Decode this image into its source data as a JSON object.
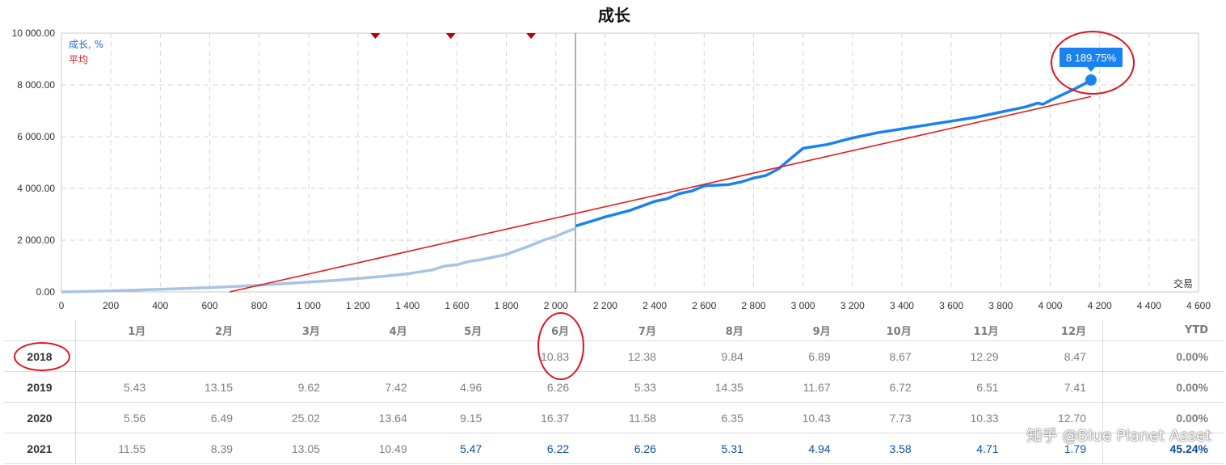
{
  "chart_data": {
    "type": "line",
    "title": "成长",
    "xlabel": "交易",
    "ylabel": "",
    "xlim": [
      0,
      4600
    ],
    "ylim": [
      0,
      10000
    ],
    "x_ticks": [
      "0",
      "200",
      "400",
      "600",
      "800",
      "1 000",
      "1 200",
      "1 400",
      "1 600",
      "1 800",
      "2 000",
      "2 200",
      "2 400",
      "2 600",
      "2 800",
      "3 000",
      "3 200",
      "3 400",
      "3 600",
      "3 800",
      "4 000",
      "4 200",
      "4 400",
      "4 600"
    ],
    "y_ticks": [
      "0.00",
      "2 000.00",
      "4 000.00",
      "6 000.00",
      "8 000.00",
      "10 000.00"
    ],
    "legend": [
      "成长, %",
      "平均"
    ],
    "legend_position": "top-left",
    "grid": true,
    "colors": {
      "growth_history": "#a9c3e2",
      "growth_recent": "#1a82f0",
      "average": "#e31b1b",
      "marker": "#b00000"
    },
    "series": [
      {
        "name": "成长, %",
        "x": [
          0,
          100,
          200,
          300,
          400,
          500,
          600,
          700,
          800,
          900,
          1000,
          1100,
          1200,
          1300,
          1400,
          1500,
          1550,
          1600,
          1650,
          1700,
          1800,
          1900,
          1950,
          2000,
          2050,
          2080
        ],
        "y": [
          0,
          20,
          40,
          70,
          100,
          130,
          170,
          210,
          260,
          320,
          380,
          440,
          520,
          600,
          700,
          850,
          1000,
          1050,
          1180,
          1250,
          1450,
          1800,
          2000,
          2150,
          2350,
          2450
        ]
      },
      {
        "name": "成长, %",
        "x": [
          2080,
          2150,
          2200,
          2300,
          2400,
          2450,
          2500,
          2550,
          2600,
          2700,
          2750,
          2800,
          2850,
          2900,
          3000,
          3100,
          3200,
          3300,
          3400,
          3500,
          3600,
          3700,
          3800,
          3900,
          3950,
          3970,
          4000,
          4100,
          4150,
          4165
        ],
        "y": [
          2550,
          2750,
          2900,
          3150,
          3500,
          3600,
          3800,
          3900,
          4100,
          4150,
          4250,
          4400,
          4500,
          4750,
          5550,
          5700,
          5950,
          6150,
          6300,
          6450,
          6600,
          6750,
          6950,
          7150,
          7300,
          7250,
          7400,
          7850,
          8100,
          8189.75
        ]
      },
      {
        "name": "平均",
        "x": [
          680,
          4165
        ],
        "y": [
          0,
          7550
        ]
      }
    ],
    "marker_x": [
      1270,
      1575,
      1900
    ],
    "divider_x": 2080,
    "annotation": {
      "x": 4165,
      "y": 8189.75,
      "label": "8 189.75%"
    }
  },
  "table": {
    "headers": [
      "1月",
      "2月",
      "3月",
      "4月",
      "5月",
      "6月",
      "7月",
      "8月",
      "9月",
      "10月",
      "11月",
      "12月",
      "YTD"
    ],
    "rows": [
      {
        "year": "2018",
        "values": [
          "",
          "",
          "",
          "",
          "",
          "10.83",
          "12.38",
          "9.84",
          "6.89",
          "8.67",
          "12.29",
          "8.47"
        ],
        "ytd": "0.00%",
        "blue_from": 99
      },
      {
        "year": "2019",
        "values": [
          "5.43",
          "13.15",
          "9.62",
          "7.42",
          "4.96",
          "6.26",
          "5.33",
          "14.35",
          "11.67",
          "6.72",
          "6.51",
          "7.41"
        ],
        "ytd": "0.00%",
        "blue_from": 99
      },
      {
        "year": "2020",
        "values": [
          "5.56",
          "6.49",
          "25.02",
          "13.64",
          "9.15",
          "16.37",
          "11.58",
          "6.35",
          "10.43",
          "7.73",
          "10.33",
          "12.70"
        ],
        "ytd": "0.00%",
        "blue_from": 99
      },
      {
        "year": "2021",
        "values": [
          "11.55",
          "8.39",
          "13.05",
          "10.49",
          "5.47",
          "6.22",
          "6.26",
          "5.31",
          "4.94",
          "3.58",
          "4.71",
          "1.79"
        ],
        "ytd": "45.24%",
        "blue_from": 4
      }
    ]
  },
  "watermark": "知乎 @Blue Planet Asset"
}
